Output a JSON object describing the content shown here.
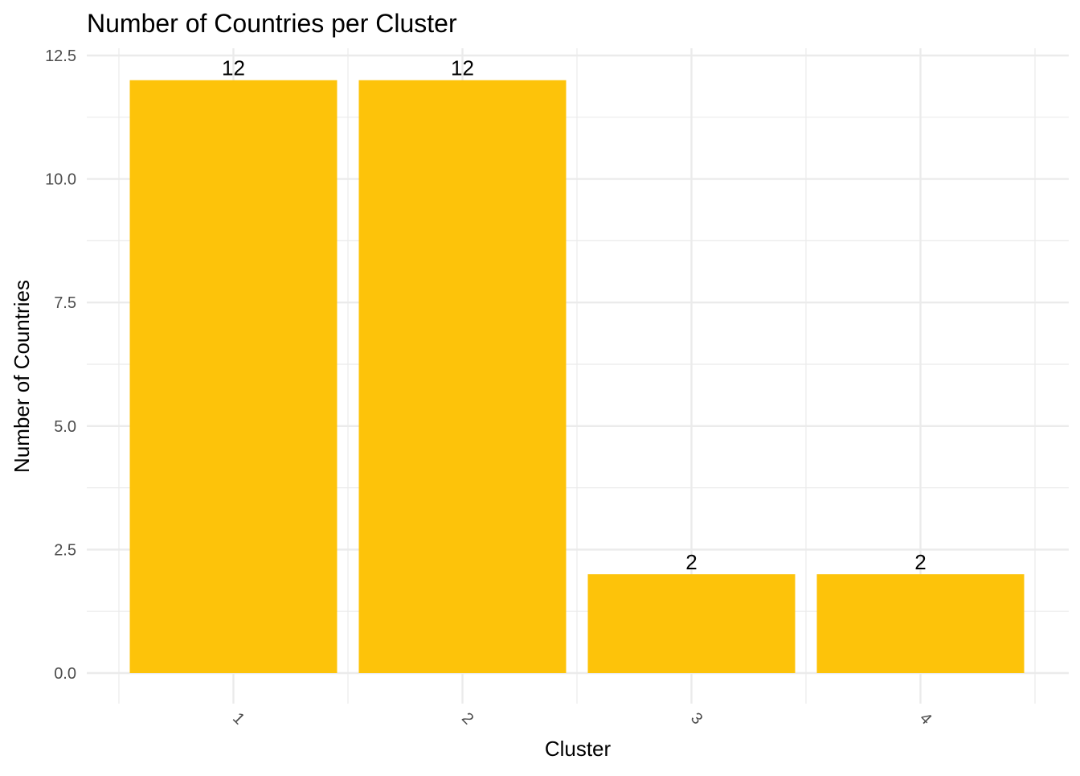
{
  "chart_data": {
    "type": "bar",
    "title": "Number of Countries per Cluster",
    "xlabel": "Cluster",
    "ylabel": "Number of Countries",
    "categories": [
      "1",
      "2",
      "3",
      "4"
    ],
    "values": [
      12,
      12,
      2,
      2
    ],
    "data_labels": [
      "12",
      "12",
      "2",
      "2"
    ],
    "ylim": [
      0,
      12.5
    ],
    "yticks": [
      0,
      2.5,
      5,
      7.5,
      10,
      12.5
    ],
    "ytick_labels": [
      "0.0",
      "2.5",
      "5.0",
      "7.5",
      "10.0",
      "12.5"
    ],
    "x_tick_rotation": "45",
    "grid": true,
    "legend": "none",
    "colors": {
      "bar": "#FDC30A",
      "grid_major": "#EBEBEB",
      "grid_minor": "#F4F4F4",
      "text": "#000000",
      "tick_text": "#4D4D4D"
    }
  }
}
